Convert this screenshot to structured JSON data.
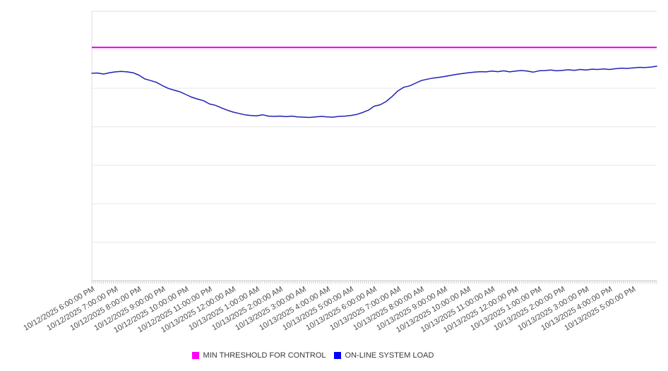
{
  "page": {
    "background": "#ffffff"
  },
  "chart_data": {
    "type": "line",
    "title": "",
    "legend_position": "bottom-center",
    "x_axis": {
      "hours_span": 24,
      "minor_ticks_per_hour": 12,
      "tick_labels": [
        "10/12/2025 6:00:00 PM",
        "10/12/2025 7:00:00 PM",
        "10/12/2025 8:00:00 PM",
        "10/12/2025 9:00:00 PM",
        "10/12/2025 10:00:00 PM",
        "10/12/2025 11:00:00 PM",
        "10/13/2025 12:00:00 AM",
        "10/13/2025 1:00:00 AM",
        "10/13/2025 2:00:00 AM",
        "10/13/2025 3:00:00 AM",
        "10/13/2025 4:00:00 AM",
        "10/13/2025 5:00:00 AM",
        "10/13/2025 6:00:00 AM",
        "10/13/2025 7:00:00 AM",
        "10/13/2025 8:00:00 AM",
        "10/13/2025 9:00:00 AM",
        "10/13/2025 10:00:00 AM",
        "10/13/2025 11:00:00 AM",
        "10/13/2025 12:00:00 PM",
        "10/13/2025 1:00:00 PM",
        "10/13/2025 2:00:00 PM",
        "10/13/2025 3:00:00 PM",
        "10/13/2025 4:00:00 PM",
        "10/13/2025 5:00:00 PM"
      ]
    },
    "y_axis": {
      "labels_visible": false,
      "gridline_intervals": 7,
      "scale_note": "no y-axis tick labels shown; series values normalized 0-100 of plot height"
    },
    "series": [
      {
        "name": "MIN THRESHOLD FOR CONTROL",
        "legend_color": "#ff00ff",
        "line_color": "#dd00dd",
        "type": "constant",
        "value": 86.6
      },
      {
        "name": "ON-LINE SYSTEM LOAD",
        "legend_color": "#0000ff",
        "line_color": "#2121b5",
        "type": "points",
        "points": [
          [
            0,
            77.0
          ],
          [
            0.25,
            77.1
          ],
          [
            0.5,
            76.7
          ],
          [
            0.75,
            77.2
          ],
          [
            1,
            77.5
          ],
          [
            1.25,
            77.7
          ],
          [
            1.5,
            77.5
          ],
          [
            1.75,
            77.2
          ],
          [
            2,
            76.3
          ],
          [
            2.25,
            74.9
          ],
          [
            2.5,
            74.3
          ],
          [
            2.75,
            73.6
          ],
          [
            3,
            72.4
          ],
          [
            3.25,
            71.4
          ],
          [
            3.5,
            70.7
          ],
          [
            3.75,
            70.1
          ],
          [
            4,
            69.1
          ],
          [
            4.25,
            68.1
          ],
          [
            4.5,
            67.4
          ],
          [
            4.75,
            66.8
          ],
          [
            5,
            65.6
          ],
          [
            5.25,
            65.1
          ],
          [
            5.5,
            64.2
          ],
          [
            5.75,
            63.3
          ],
          [
            6,
            62.6
          ],
          [
            6.25,
            62.1
          ],
          [
            6.5,
            61.6
          ],
          [
            6.75,
            61.3
          ],
          [
            7,
            61.2
          ],
          [
            7.25,
            61.6
          ],
          [
            7.5,
            61.1
          ],
          [
            7.75,
            61.0
          ],
          [
            8,
            61.1
          ],
          [
            8.25,
            60.9
          ],
          [
            8.5,
            61.1
          ],
          [
            8.75,
            60.8
          ],
          [
            9,
            60.7
          ],
          [
            9.25,
            60.6
          ],
          [
            9.5,
            60.8
          ],
          [
            9.75,
            61.0
          ],
          [
            10,
            60.8
          ],
          [
            10.25,
            60.7
          ],
          [
            10.5,
            61.0
          ],
          [
            10.75,
            61.1
          ],
          [
            11,
            61.3
          ],
          [
            11.25,
            61.7
          ],
          [
            11.5,
            62.4
          ],
          [
            11.75,
            63.3
          ],
          [
            12,
            64.8
          ],
          [
            12.25,
            65.3
          ],
          [
            12.5,
            66.5
          ],
          [
            12.75,
            68.3
          ],
          [
            13,
            70.4
          ],
          [
            13.25,
            71.8
          ],
          [
            13.5,
            72.3
          ],
          [
            13.75,
            73.3
          ],
          [
            14,
            74.3
          ],
          [
            14.25,
            74.8
          ],
          [
            14.5,
            75.2
          ],
          [
            14.75,
            75.5
          ],
          [
            15,
            75.8
          ],
          [
            15.25,
            76.2
          ],
          [
            15.5,
            76.6
          ],
          [
            15.75,
            76.9
          ],
          [
            16,
            77.2
          ],
          [
            16.25,
            77.4
          ],
          [
            16.5,
            77.6
          ],
          [
            16.75,
            77.5
          ],
          [
            17,
            77.8
          ],
          [
            17.25,
            77.6
          ],
          [
            17.5,
            77.9
          ],
          [
            17.75,
            77.5
          ],
          [
            18,
            77.8
          ],
          [
            18.25,
            78.0
          ],
          [
            18.5,
            77.8
          ],
          [
            18.75,
            77.4
          ],
          [
            19,
            77.9
          ],
          [
            19.25,
            78.0
          ],
          [
            19.5,
            78.2
          ],
          [
            19.75,
            77.9
          ],
          [
            20,
            78.1
          ],
          [
            20.25,
            78.3
          ],
          [
            20.5,
            78.1
          ],
          [
            20.75,
            78.4
          ],
          [
            21,
            78.2
          ],
          [
            21.25,
            78.5
          ],
          [
            21.5,
            78.4
          ],
          [
            21.75,
            78.6
          ],
          [
            22,
            78.4
          ],
          [
            22.25,
            78.7
          ],
          [
            22.5,
            78.9
          ],
          [
            22.75,
            78.8
          ],
          [
            23,
            79.0
          ],
          [
            23.25,
            79.2
          ],
          [
            23.5,
            79.1
          ],
          [
            23.75,
            79.3
          ],
          [
            24,
            79.6
          ]
        ]
      }
    ]
  },
  "legend": {
    "items": [
      {
        "label": "MIN THRESHOLD FOR CONTROL",
        "color": "#ff00ff"
      },
      {
        "label": "ON-LINE SYSTEM LOAD",
        "color": "#0000ff"
      }
    ]
  }
}
